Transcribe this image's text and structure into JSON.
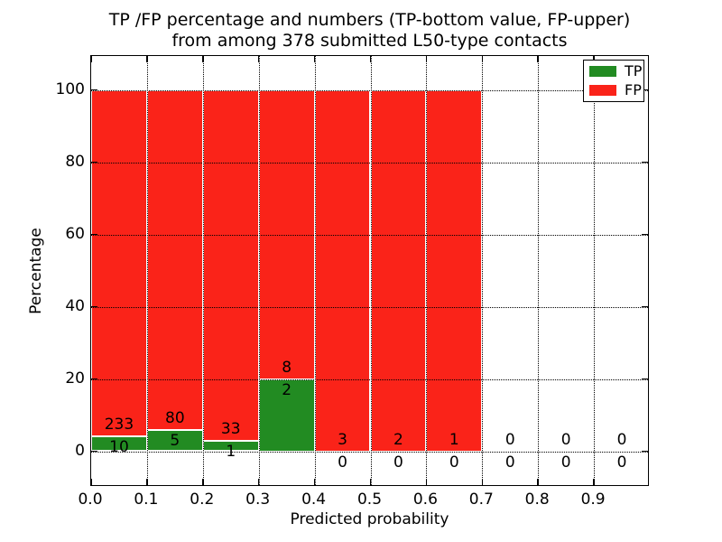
{
  "figure": {
    "title_line1": "TP /FP percentage and numbers (TP-bottom value, FP-upper)",
    "title_line2": "from among 378 submitted L50-type contacts"
  },
  "chart_data": {
    "type": "bar",
    "subtype": "stacked-percentage-histogram",
    "title": "TP /FP percentage and numbers (TP-bottom value, FP-upper)\nfrom among 378 submitted L50-type contacts",
    "xlabel": "Predicted probability",
    "ylabel": "Percentage",
    "xlim": [
      0.0,
      1.0
    ],
    "ylim": [
      -10,
      110
    ],
    "x_tick_values": [
      0.0,
      0.1,
      0.2,
      0.3,
      0.4,
      0.5,
      0.6,
      0.7,
      0.8,
      0.9
    ],
    "x_tick_labels": [
      "0.0",
      "0.1",
      "0.2",
      "0.3",
      "0.4",
      "0.5",
      "0.6",
      "0.7",
      "0.8",
      "0.9"
    ],
    "y_tick_values": [
      0,
      20,
      40,
      60,
      80,
      100
    ],
    "y_tick_labels": [
      "0",
      "20",
      "40",
      "60",
      "80",
      "100"
    ],
    "grid": {
      "style": "dotted",
      "color": "#000000"
    },
    "bar_edge_color": "#ffffff",
    "legend_position": "upper-right",
    "total_contacts": 378,
    "legend": [
      {
        "label": "TP",
        "color": "#228b22"
      },
      {
        "label": "FP",
        "color": "#fa2319"
      }
    ],
    "bins": [
      {
        "x0": 0.0,
        "x1": 0.1,
        "tp": 10,
        "fp": 233
      },
      {
        "x0": 0.1,
        "x1": 0.2,
        "tp": 5,
        "fp": 80
      },
      {
        "x0": 0.2,
        "x1": 0.3,
        "tp": 1,
        "fp": 33
      },
      {
        "x0": 0.3,
        "x1": 0.4,
        "tp": 2,
        "fp": 8
      },
      {
        "x0": 0.4,
        "x1": 0.5,
        "tp": 0,
        "fp": 3
      },
      {
        "x0": 0.5,
        "x1": 0.6,
        "tp": 0,
        "fp": 2
      },
      {
        "x0": 0.6,
        "x1": 0.7,
        "tp": 0,
        "fp": 1
      },
      {
        "x0": 0.7,
        "x1": 0.8,
        "tp": 0,
        "fp": 0
      },
      {
        "x0": 0.8,
        "x1": 0.9,
        "tp": 0,
        "fp": 0
      },
      {
        "x0": 0.9,
        "x1": 1.0,
        "tp": 0,
        "fp": 0
      }
    ]
  }
}
